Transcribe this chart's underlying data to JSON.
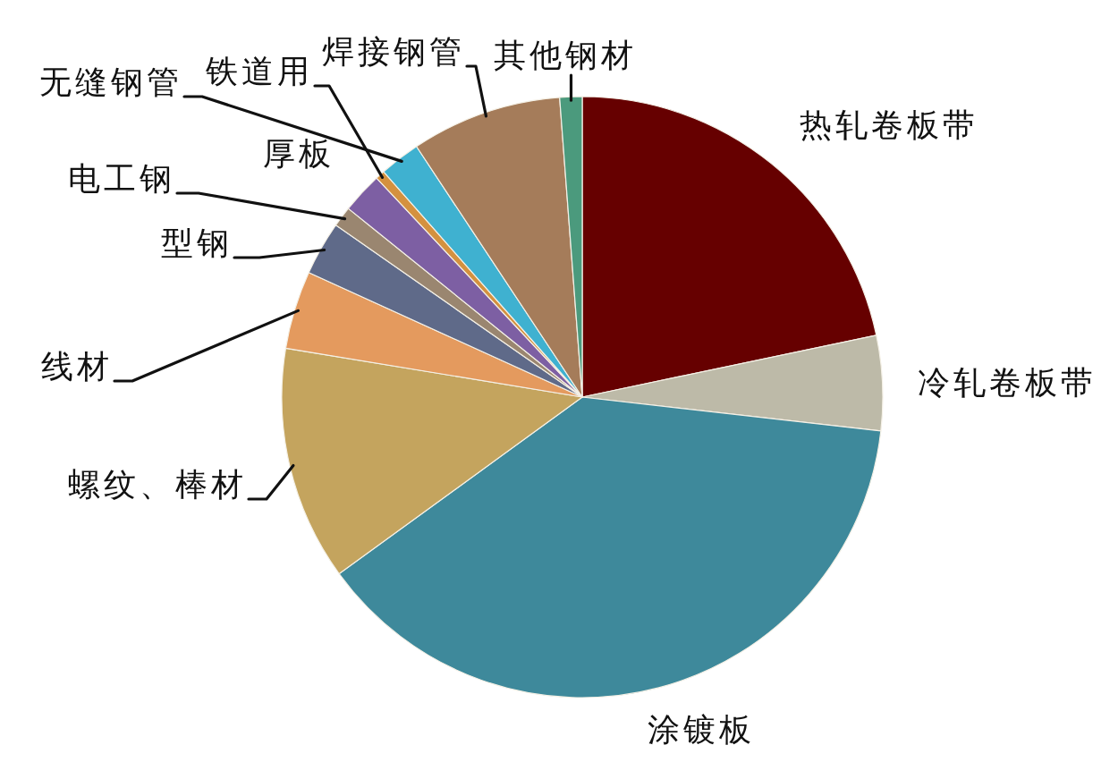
{
  "chart_data": {
    "type": "pie",
    "categories": [
      "热轧卷板带",
      "冷轧卷板带",
      "涂镀板",
      "螺纹、棒材",
      "线材",
      "型钢",
      "电工钢",
      "厚板",
      "铁道用",
      "无缝钢管",
      "焊接钢管",
      "其他钢材"
    ],
    "values": [
      21.7,
      5.1,
      38.2,
      12.6,
      4.2,
      2.9,
      1.1,
      2.2,
      0.5,
      2.2,
      8.1,
      1.2
    ],
    "colors": [
      "#660000",
      "#bdbaa8",
      "#3e899b",
      "#c4a45e",
      "#e49a5e",
      "#5f6a89",
      "#9a8670",
      "#7d5fa3",
      "#d4913f",
      "#3fb1d0",
      "#a57c5a",
      "#4b9a7d"
    ]
  }
}
